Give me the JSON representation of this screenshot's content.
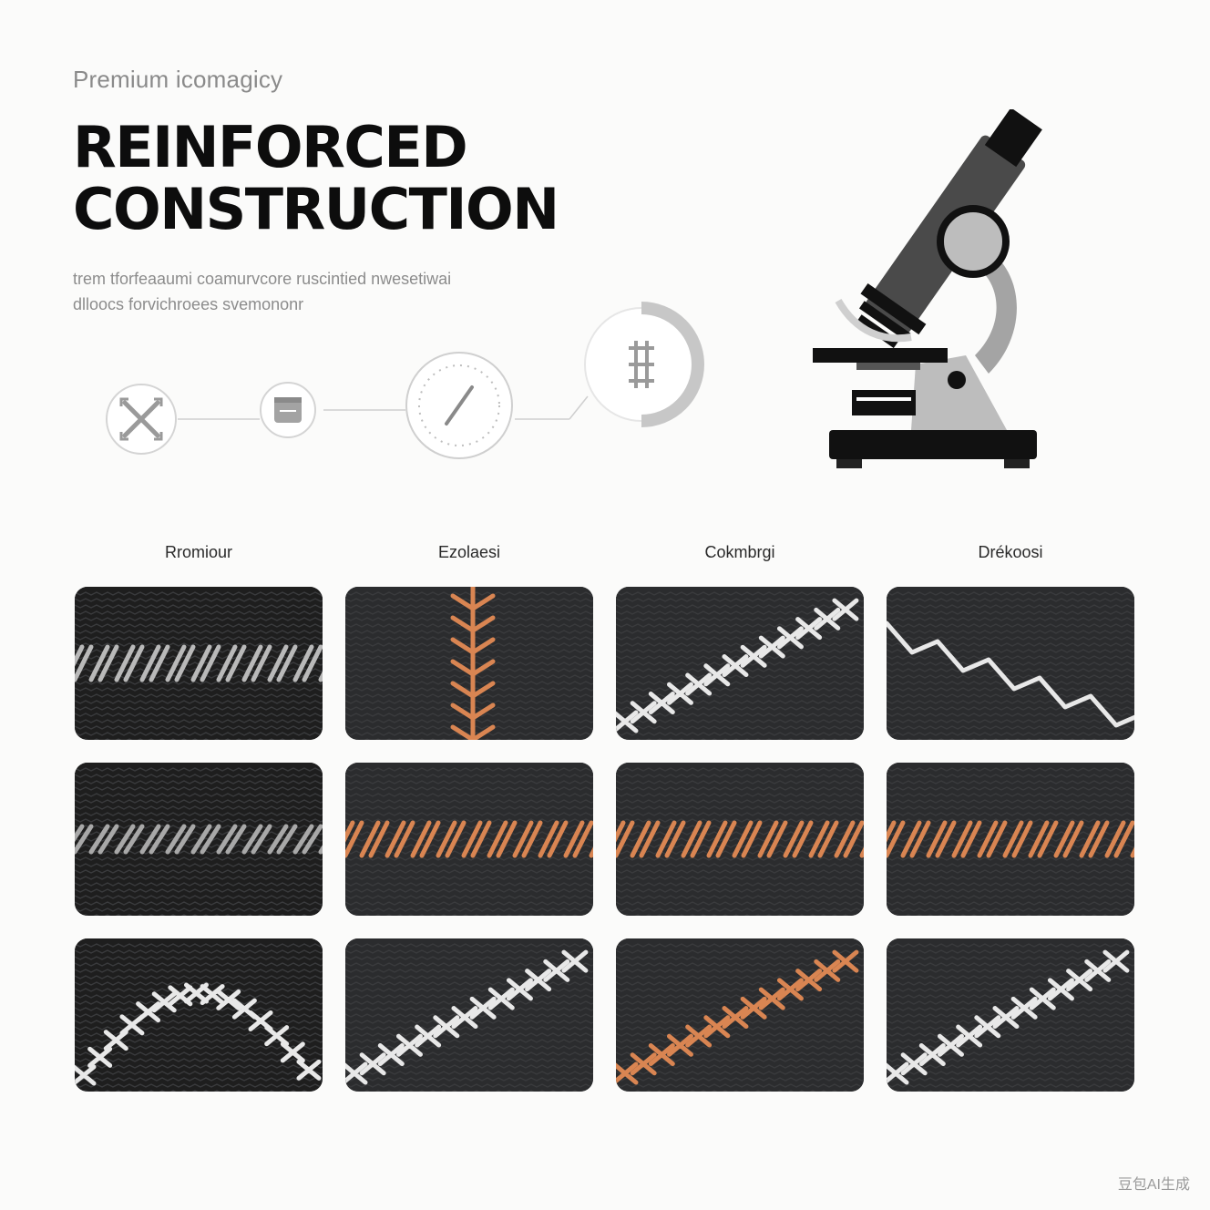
{
  "header": {
    "eyebrow": "Premium icomagicy",
    "title_line1": "REINFORCED",
    "title_line2": "CONSTRUCTION",
    "desc_line1": "trem tforfeaaumi coamurvcore ruscintied nwesetiwai",
    "desc_line2": "dlloocs forvichroees svemononr"
  },
  "process_steps": [
    {
      "icon": "cross-arrows-icon"
    },
    {
      "icon": "box-icon"
    },
    {
      "icon": "needle-dial-icon"
    },
    {
      "icon": "stitch-gauge-icon"
    }
  ],
  "illustration": {
    "icon": "microscope-icon"
  },
  "grid": {
    "columns": [
      "Rromiour",
      "Ezolaesi",
      "Cokmbrgi",
      "Drékoosi"
    ],
    "tiles": [
      {
        "thread": "#b9b9b9",
        "style": "zigzag"
      },
      {
        "thread": "#d98552",
        "style": "vertical"
      },
      {
        "thread": "#e8e8e8",
        "style": "diagonal"
      },
      {
        "thread": "#e8e8e8",
        "style": "zigzag-down"
      },
      {
        "thread": "#a8a8a8",
        "style": "slant"
      },
      {
        "thread": "#d98552",
        "style": "zigzag"
      },
      {
        "thread": "#d98552",
        "style": "zigzag"
      },
      {
        "thread": "#d98552",
        "style": "zigzag"
      },
      {
        "thread": "#e8e8e8",
        "style": "arc"
      },
      {
        "thread": "#e8e8e8",
        "style": "diagonal"
      },
      {
        "thread": "#d98552",
        "style": "diagonal"
      },
      {
        "thread": "#e8e8e8",
        "style": "diagonal"
      }
    ]
  },
  "watermark": "豆包AI生成"
}
